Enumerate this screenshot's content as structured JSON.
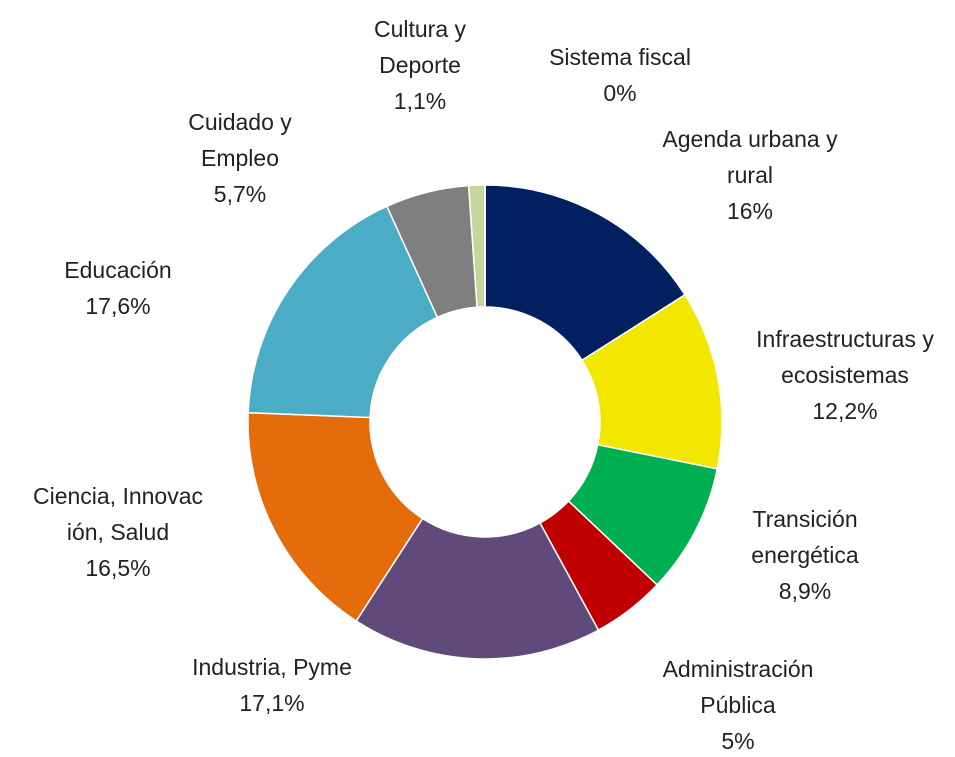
{
  "chart_data": {
    "type": "donut",
    "categories": [
      "Agenda urbana y rural",
      "Infraestructuras y ecosistemas",
      "Transición energética",
      "Administración Pública",
      "Industria, Pyme",
      "Ciencia, Innovación, Salud",
      "Educación",
      "Cuidado y Empleo",
      "Cultura y Deporte",
      "Sistema fiscal"
    ],
    "values": [
      16,
      12.2,
      8.9,
      5,
      17.1,
      16.5,
      17.6,
      5.7,
      1.1,
      0
    ],
    "value_labels": [
      "16%",
      "12,2%",
      "8,9%",
      "5%",
      "17,1%",
      "16,5%",
      "17,6%",
      "5,7%",
      "1,1%",
      "0%"
    ],
    "colors": [
      "#002060",
      "#f2e700",
      "#00b050",
      "#c00000",
      "#604a7b",
      "#e46c0a",
      "#4bacc6",
      "#7f7f7f",
      "#c3d69b",
      "#a6a6a6"
    ]
  }
}
